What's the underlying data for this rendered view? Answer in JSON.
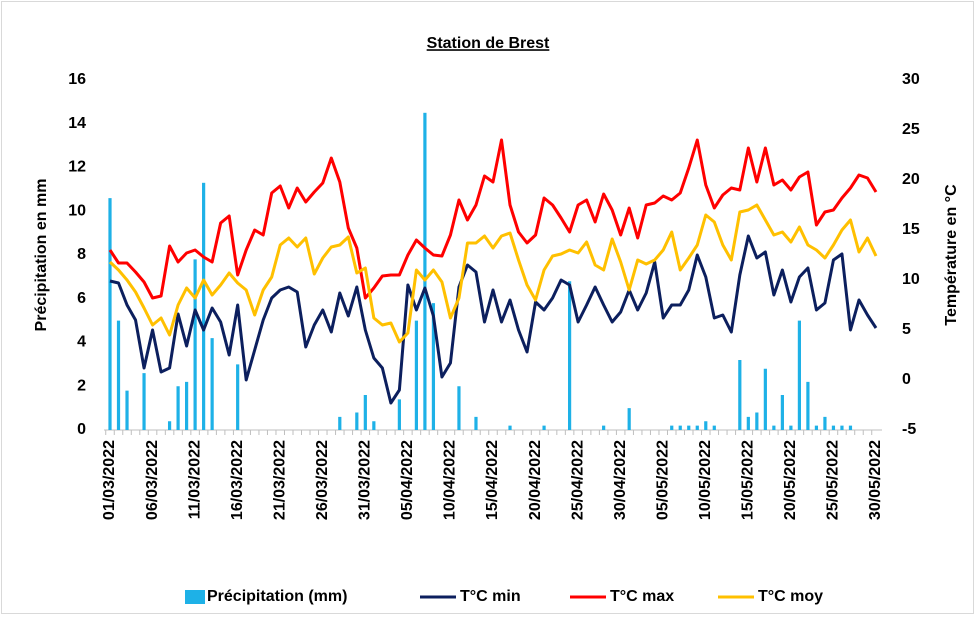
{
  "chart_data": {
    "type": "combo",
    "title": "Station de Brest",
    "y_label": "Précipitation en mm",
    "y2_label": "Température en °C",
    "categories": [
      "01/03/2022",
      null,
      null,
      null,
      null,
      "06/03/2022",
      null,
      null,
      null,
      null,
      "11/03/2022",
      null,
      null,
      null,
      null,
      "16/03/2022",
      null,
      null,
      null,
      null,
      "21/03/2022",
      null,
      null,
      null,
      null,
      "26/03/2022",
      null,
      null,
      null,
      null,
      "31/03/2022",
      null,
      null,
      null,
      null,
      "05/04/2022",
      null,
      null,
      null,
      null,
      "10/04/2022",
      null,
      null,
      null,
      null,
      "15/04/2022",
      null,
      null,
      null,
      null,
      "20/04/2022",
      null,
      null,
      null,
      null,
      "25/04/2022",
      null,
      null,
      null,
      null,
      "30/04/2022",
      null,
      null,
      null,
      null,
      "05/05/2022",
      null,
      null,
      null,
      null,
      "10/05/2022",
      null,
      null,
      null,
      null,
      "15/05/2022",
      null,
      null,
      null,
      null,
      "20/05/2022",
      null,
      null,
      null,
      null,
      "25/05/2022",
      null,
      null,
      null,
      null,
      "30/05/2022"
    ],
    "ylim": [
      0,
      16
    ],
    "yticks": [
      0,
      2,
      4,
      6,
      8,
      10,
      12,
      14,
      16
    ],
    "y2lim": [
      -5,
      30
    ],
    "y2ticks": [
      -5,
      0,
      5,
      10,
      15,
      20,
      25,
      30
    ],
    "grid": false,
    "legend": "bottom",
    "series": [
      {
        "name": "Précipitation (mm)",
        "type": "bar",
        "color": "#1eb1e7",
        "values": [
          10.6,
          5,
          1.8,
          0,
          2.6,
          0,
          0,
          0.4,
          2,
          2.2,
          7.8,
          11.3,
          4.2,
          0,
          0,
          3,
          0,
          0,
          0,
          0,
          0,
          0,
          0,
          0,
          0,
          0,
          0,
          0.6,
          0,
          0.8,
          1.6,
          0.4,
          0,
          0,
          1.4,
          0,
          5,
          14.5,
          5.8,
          0,
          0,
          2,
          0,
          0.6,
          0,
          0,
          0,
          0.2,
          0,
          0,
          0,
          0.2,
          0,
          0,
          6.8,
          0,
          0,
          0,
          0.2,
          0,
          0,
          1,
          0,
          0,
          0,
          0,
          0.2,
          0.2,
          0.2,
          0.2,
          0.4,
          0.2,
          0,
          0,
          3.2,
          0.6,
          0.8,
          2.8,
          0.2,
          1.6,
          0.2,
          5,
          2.2,
          0.2,
          0.6,
          0.2,
          0.2,
          0.2,
          0,
          0,
          0
        ]
      },
      {
        "name": "T°C min",
        "type": "line",
        "axis": "y2",
        "color": "#0c1f5e",
        "values": [
          9.9,
          9.7,
          7.5,
          6,
          1.2,
          5,
          0.8,
          1.2,
          6.6,
          3.4,
          7,
          5,
          7.2,
          5.8,
          2.5,
          7.5,
          0,
          3,
          6,
          8.2,
          9,
          9.3,
          8.8,
          3.3,
          5.5,
          7,
          4.8,
          8.7,
          6.4,
          9.3,
          5,
          2.2,
          1.2,
          -2.3,
          -1,
          9.5,
          7,
          9.2,
          6.4,
          0.3,
          1.7,
          9.3,
          11.5,
          10.8,
          5.8,
          9,
          5.8,
          8,
          5,
          2.8,
          7.8,
          7,
          8.2,
          10,
          9.5,
          5.8,
          7.5,
          9.3,
          7.5,
          5.8,
          6.8,
          9,
          7,
          8.7,
          11.8,
          6.2,
          7.5,
          7.5,
          9,
          12.5,
          10.3,
          6.2,
          6.5,
          4.8,
          10.5,
          14.4,
          12.2,
          12.8,
          8.5,
          11,
          7.8,
          10.3,
          11.2,
          7,
          7.7,
          12,
          12.6,
          5,
          8,
          6.5,
          5.2
        ]
      },
      {
        "name": "T°C max",
        "type": "line",
        "axis": "y2",
        "color": "#ff0000",
        "values": [
          13,
          11.7,
          11.7,
          10.8,
          9.8,
          8.2,
          8.4,
          13.4,
          11.8,
          12.7,
          13,
          12.3,
          11.8,
          15.7,
          16.4,
          10.5,
          13,
          15,
          14.5,
          18.7,
          19.4,
          17.2,
          19.2,
          17.8,
          18.8,
          19.7,
          22.2,
          19.8,
          15.2,
          13.2,
          8.2,
          9.2,
          10.4,
          10.5,
          10.5,
          12.5,
          14,
          13.2,
          12.5,
          12.4,
          14.5,
          18,
          16,
          17.5,
          20.4,
          19.8,
          24,
          17.5,
          14.8,
          13.7,
          14.5,
          18.2,
          17.5,
          16.2,
          14.8,
          17.5,
          18,
          15.8,
          18.6,
          17,
          14.5,
          17.2,
          14.2,
          17.5,
          17.7,
          18.4,
          18,
          18.7,
          21.2,
          24,
          19.5,
          17.2,
          18.5,
          19.2,
          19,
          23.2,
          19.8,
          23.2,
          19.5,
          20,
          19,
          20.3,
          20.8,
          15.5,
          16.8,
          17,
          18.2,
          19.2,
          20.5,
          20.2,
          18.8
        ]
      },
      {
        "name": "T°C moy",
        "type": "line",
        "axis": "y2",
        "color": "#ffc000",
        "values": [
          11.8,
          11,
          10,
          8.8,
          7.2,
          5.5,
          6.2,
          4.5,
          7.5,
          9.2,
          8.2,
          10,
          8.5,
          9.5,
          10.7,
          9.7,
          9,
          6.5,
          9,
          10.3,
          13.5,
          14.2,
          13.3,
          14.2,
          10.6,
          12.2,
          13.3,
          13.5,
          14.3,
          10.7,
          11.2,
          6.2,
          5.5,
          5.7,
          3.8,
          4.7,
          11,
          10,
          11,
          9.8,
          6.2,
          8.2,
          13.7,
          13.7,
          14.4,
          13.2,
          14.4,
          14.7,
          12,
          9.5,
          8,
          11,
          12.4,
          12.6,
          13,
          12.7,
          13.8,
          11.5,
          11,
          14.1,
          11.8,
          9,
          12,
          11.6,
          12,
          13,
          14.8,
          11,
          12.2,
          13.5,
          16.5,
          15.8,
          13.5,
          12,
          16.8,
          17,
          17.5,
          16,
          14.5,
          14.8,
          13.8,
          15.3,
          13.5,
          13,
          12.2,
          13.5,
          15,
          16,
          12.8,
          14.2,
          12.4
        ]
      }
    ]
  }
}
